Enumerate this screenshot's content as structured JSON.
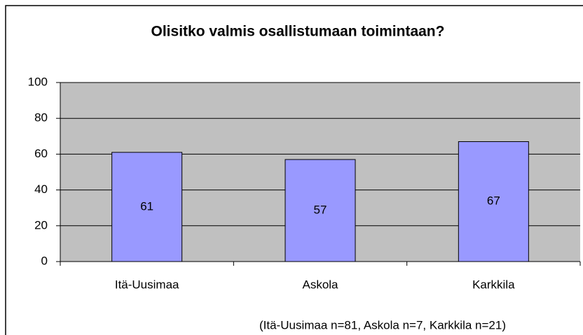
{
  "chart_data": {
    "type": "bar",
    "title": "Olisitko valmis osallistumaan toimintaan?",
    "categories": [
      "Itä-Uusimaa",
      "Askola",
      "Karkkila"
    ],
    "values": [
      61,
      57,
      67
    ],
    "color": "#9999ff",
    "ylim": [
      0,
      100
    ],
    "yticks": [
      0,
      20,
      40,
      60,
      80,
      100
    ],
    "grid": true,
    "annotation": "(Itä-Uusimaa n=81, Askola n=7, Karkkila n=21)"
  }
}
